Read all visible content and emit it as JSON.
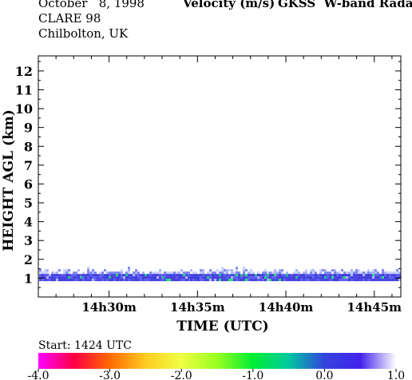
{
  "header": {
    "date": "October   8, 1998",
    "campaign": "CLARE 98",
    "location": "Chilbolton, UK",
    "quantity": "Velocity (m/s)",
    "instrument": "GKSS  W-band Radar"
  },
  "colorbar": {
    "start_label": "Start: 1424 UTC",
    "ticks": [
      "-4.0",
      "-3.0",
      "-2.0",
      "-1.0",
      "0.0",
      "1.0"
    ],
    "range": [
      -4.0,
      1.0
    ],
    "colors": [
      "#ff00ff",
      "#ff0044",
      "#ff6a00",
      "#ffcc22",
      "#eeff44",
      "#99ff22",
      "#00ee33",
      "#00c8a0",
      "#3344dd",
      "#4422ee",
      "#ffffff"
    ]
  },
  "chart_data": {
    "type": "heatmap",
    "xlabel": "TIME (UTC)",
    "ylabel": "HEIGHT AGL (km)",
    "xticks": [
      "14h30m",
      "14h35m",
      "14h40m",
      "14h45m"
    ],
    "xtick_minutes": [
      30,
      35,
      40,
      45
    ],
    "xlim_minutes": [
      26,
      46.5
    ],
    "yticks": [
      "1",
      "2",
      "3",
      "4",
      "5",
      "6",
      "7",
      "8",
      "9",
      "10",
      "11",
      "12"
    ],
    "ylim": [
      0,
      12.8
    ],
    "echo_layer": {
      "bottom_km": 0.95,
      "top_km": 1.35,
      "dominant_velocity_ms": 0.2,
      "velocity_range_ms": [
        -1.0,
        1.0
      ]
    }
  }
}
